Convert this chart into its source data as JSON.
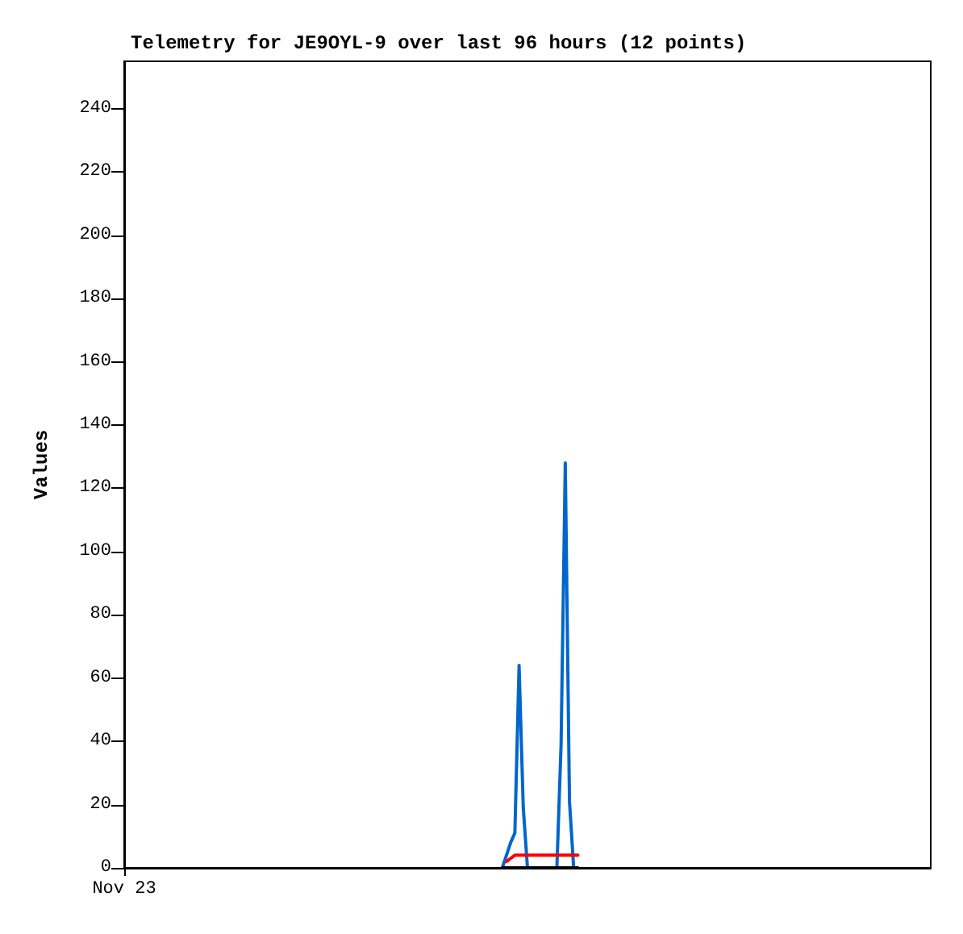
{
  "chart_data": {
    "type": "line",
    "title": "Telemetry for JE9OYL-9 over last 96 hours (12 points)",
    "ylabel": "Values",
    "ylim": [
      0,
      255
    ],
    "yticks": [
      0,
      20,
      40,
      60,
      80,
      100,
      120,
      140,
      160,
      180,
      200,
      220,
      240
    ],
    "marker": "none",
    "line_style": "solid",
    "categories": [
      "Nov 23",
      null,
      null,
      null,
      null,
      null,
      null,
      null,
      null,
      null,
      null,
      null,
      null,
      null,
      null,
      null,
      null,
      null,
      null,
      null,
      null,
      null,
      null,
      null,
      null,
      null,
      null,
      null,
      null,
      null,
      null,
      null,
      null,
      null,
      null,
      null,
      null,
      null,
      null,
      null,
      null,
      null,
      null,
      null,
      null,
      null,
      null,
      null,
      null,
      null,
      null,
      null,
      null,
      null,
      null,
      null,
      null,
      null,
      null,
      null,
      null,
      null,
      null,
      null,
      null,
      null,
      null,
      null,
      null,
      null,
      null,
      null,
      null,
      null,
      null,
      null,
      null,
      null,
      null,
      null,
      null,
      null,
      null,
      null,
      null,
      null,
      null,
      null,
      null,
      null,
      null,
      null,
      null,
      null,
      null,
      null,
      null,
      null,
      null,
      null,
      null,
      null,
      null,
      null,
      null,
      null,
      null,
      null,
      null,
      null,
      null,
      null,
      null,
      null,
      null,
      null,
      null,
      null,
      null,
      null,
      null,
      null,
      null,
      null,
      null,
      null,
      null,
      null,
      null,
      null,
      null,
      null,
      null,
      null,
      null,
      null,
      null,
      null,
      null,
      null,
      null,
      null,
      null,
      null,
      null,
      null,
      null,
      null,
      null,
      null,
      null,
      null,
      null,
      null,
      null,
      null,
      null,
      null,
      null,
      null,
      null,
      null,
      null,
      null,
      null,
      null,
      null,
      null,
      null,
      null,
      null,
      null,
      null,
      null,
      null,
      null,
      null,
      null,
      null,
      null,
      null,
      null,
      null,
      null,
      null,
      null,
      null,
      null,
      null,
      null,
      null,
      null,
      null
    ],
    "series": [
      {
        "color": "#0066cc",
        "values": [
          null,
          null,
          null,
          null,
          null,
          null,
          null,
          null,
          null,
          null,
          null,
          null,
          null,
          null,
          null,
          null,
          null,
          null,
          null,
          null,
          null,
          null,
          null,
          null,
          null,
          null,
          null,
          null,
          null,
          null,
          null,
          null,
          null,
          null,
          null,
          null,
          null,
          null,
          null,
          null,
          null,
          null,
          null,
          null,
          null,
          null,
          null,
          null,
          null,
          null,
          null,
          null,
          null,
          null,
          null,
          null,
          null,
          null,
          null,
          null,
          null,
          null,
          null,
          null,
          null,
          null,
          null,
          null,
          null,
          null,
          null,
          null,
          null,
          null,
          null,
          null,
          null,
          null,
          null,
          null,
          null,
          null,
          null,
          null,
          null,
          null,
          null,
          null,
          null,
          null,
          0,
          4,
          8,
          11,
          64,
          19,
          0,
          null,
          null,
          null,
          null,
          null,
          null,
          0,
          39,
          128,
          21,
          0,
          null,
          null,
          null,
          null,
          null,
          null,
          null,
          null,
          null,
          null,
          null,
          null,
          null,
          null,
          null,
          null,
          null,
          null,
          null,
          null,
          null,
          null,
          null,
          null,
          null,
          null,
          null,
          null,
          null,
          null,
          null,
          null,
          null,
          null,
          null,
          null,
          null,
          null,
          null,
          null,
          null,
          null,
          null,
          null,
          null,
          null,
          null,
          null,
          null,
          null,
          null,
          null,
          null,
          null,
          null,
          null,
          null,
          null,
          null,
          null,
          null,
          null,
          null,
          null,
          null,
          null,
          null,
          null,
          null,
          null,
          null,
          null,
          null,
          null,
          null,
          null,
          null,
          null,
          null,
          null,
          null,
          null,
          null,
          null,
          null
        ]
      },
      {
        "color": "#ff0000",
        "values": [
          null,
          null,
          null,
          null,
          null,
          null,
          null,
          null,
          null,
          null,
          null,
          null,
          null,
          null,
          null,
          null,
          null,
          null,
          null,
          null,
          null,
          null,
          null,
          null,
          null,
          null,
          null,
          null,
          null,
          null,
          null,
          null,
          null,
          null,
          null,
          null,
          null,
          null,
          null,
          null,
          null,
          null,
          null,
          null,
          null,
          null,
          null,
          null,
          null,
          null,
          null,
          null,
          null,
          null,
          null,
          null,
          null,
          null,
          null,
          null,
          null,
          null,
          null,
          null,
          null,
          null,
          null,
          null,
          null,
          null,
          null,
          null,
          null,
          null,
          null,
          null,
          null,
          null,
          null,
          null,
          null,
          null,
          null,
          null,
          null,
          null,
          null,
          null,
          null,
          null,
          null,
          2,
          3,
          4,
          4,
          4,
          4,
          4,
          4,
          4,
          4,
          4,
          4,
          4,
          4,
          4,
          4,
          4,
          4,
          null,
          null,
          null,
          null,
          null,
          null,
          null,
          null,
          null,
          null,
          null,
          null,
          null,
          null,
          null,
          null,
          null,
          null,
          null,
          null,
          null,
          null,
          null,
          null,
          null,
          null,
          null,
          null,
          null,
          null,
          null,
          null,
          null,
          null,
          null,
          null,
          null,
          null,
          null,
          null,
          null,
          null,
          null,
          null,
          null,
          null,
          null,
          null,
          null,
          null,
          null,
          null,
          null,
          null,
          null,
          null,
          null,
          null,
          null,
          null,
          null,
          null,
          null,
          null,
          null,
          null,
          null,
          null,
          null,
          null,
          null,
          null,
          null,
          null,
          null,
          null,
          null,
          null,
          null,
          null,
          null,
          null,
          null,
          null
        ]
      },
      {
        "color": "#000000",
        "values": [
          null,
          null,
          null,
          null,
          null,
          null,
          null,
          null,
          null,
          null,
          null,
          null,
          null,
          null,
          null,
          null,
          null,
          null,
          null,
          null,
          null,
          null,
          null,
          null,
          null,
          null,
          null,
          null,
          null,
          null,
          null,
          null,
          null,
          null,
          null,
          null,
          null,
          null,
          null,
          null,
          null,
          null,
          null,
          null,
          null,
          null,
          null,
          null,
          null,
          null,
          null,
          null,
          null,
          null,
          null,
          null,
          null,
          null,
          null,
          null,
          null,
          null,
          null,
          null,
          null,
          null,
          null,
          null,
          null,
          null,
          null,
          null,
          null,
          null,
          null,
          null,
          null,
          null,
          null,
          null,
          null,
          null,
          null,
          null,
          null,
          null,
          null,
          null,
          null,
          null,
          0,
          0,
          0,
          0,
          0,
          0,
          0,
          0,
          0,
          0,
          0,
          0,
          0,
          0,
          0,
          0,
          0,
          0,
          0,
          null,
          null,
          null,
          null,
          null,
          null,
          null,
          null,
          null,
          null,
          null,
          null,
          null,
          null,
          null,
          null,
          null,
          null,
          null,
          null,
          null,
          null,
          null,
          null,
          null,
          null,
          null,
          null,
          null,
          null,
          null,
          null,
          null,
          null,
          null,
          null,
          null,
          null,
          null,
          null,
          null,
          null,
          null,
          null,
          null,
          null,
          null,
          null,
          null,
          null,
          null,
          null,
          null,
          null,
          null,
          null,
          null,
          null,
          null,
          null,
          null,
          null,
          null,
          null,
          null,
          null,
          null,
          null,
          null,
          null,
          null,
          null,
          null,
          null,
          null,
          null,
          null,
          null,
          null,
          null,
          null,
          null,
          null,
          null
        ]
      }
    ]
  }
}
